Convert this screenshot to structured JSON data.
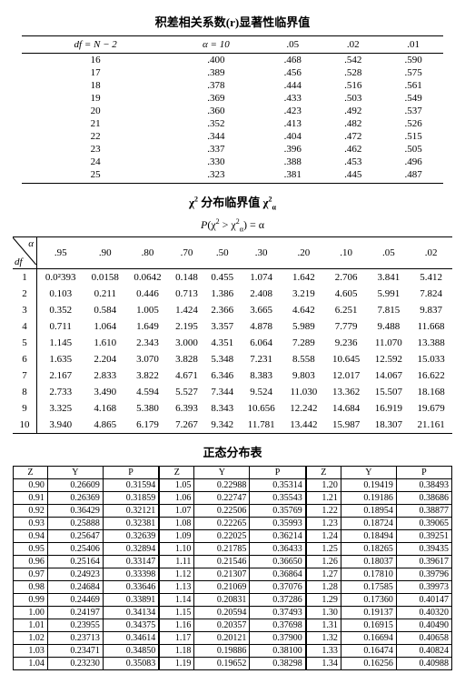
{
  "t1": {
    "title": "积差相关系数(r)显著性临界值",
    "header": [
      "df = N − 2",
      "α = 10",
      ".05",
      ".02",
      ".01"
    ],
    "rows": [
      [
        "16",
        ".400",
        ".468",
        ".542",
        ".590"
      ],
      [
        "17",
        ".389",
        ".456",
        ".528",
        ".575"
      ],
      [
        "18",
        ".378",
        ".444",
        ".516",
        ".561"
      ],
      [
        "19",
        ".369",
        ".433",
        ".503",
        ".549"
      ],
      [
        "20",
        ".360",
        ".423",
        ".492",
        ".537"
      ],
      [
        "21",
        ".352",
        ".413",
        ".482",
        ".526"
      ],
      [
        "22",
        ".344",
        ".404",
        ".472",
        ".515"
      ],
      [
        "23",
        ".337",
        ".396",
        ".462",
        ".505"
      ],
      [
        "24",
        ".330",
        ".388",
        ".453",
        ".496"
      ],
      [
        "25",
        ".323",
        ".381",
        ".445",
        ".487"
      ]
    ]
  },
  "t2": {
    "title": "χ² 分布临界值 χ²α",
    "subtitle": "P(χ² > χ²α) = α",
    "corner_alpha": "α",
    "corner_df": "df",
    "alphas": [
      ".95",
      ".90",
      ".80",
      ".70",
      ".50",
      ".30",
      ".20",
      ".10",
      ".05",
      ".02"
    ],
    "rows": [
      [
        "1",
        "0.0²393",
        "0.0158",
        "0.0642",
        "0.148",
        "0.455",
        "1.074",
        "1.642",
        "2.706",
        "3.841",
        "5.412"
      ],
      [
        "2",
        "0.103",
        "0.211",
        "0.446",
        "0.713",
        "1.386",
        "2.408",
        "3.219",
        "4.605",
        "5.991",
        "7.824"
      ],
      [
        "3",
        "0.352",
        "0.584",
        "1.005",
        "1.424",
        "2.366",
        "3.665",
        "4.642",
        "6.251",
        "7.815",
        "9.837"
      ],
      [
        "4",
        "0.711",
        "1.064",
        "1.649",
        "2.195",
        "3.357",
        "4.878",
        "5.989",
        "7.779",
        "9.488",
        "11.668"
      ],
      [
        "5",
        "1.145",
        "1.610",
        "2.343",
        "3.000",
        "4.351",
        "6.064",
        "7.289",
        "9.236",
        "11.070",
        "13.388"
      ],
      [
        "6",
        "1.635",
        "2.204",
        "3.070",
        "3.828",
        "5.348",
        "7.231",
        "8.558",
        "10.645",
        "12.592",
        "15.033"
      ],
      [
        "7",
        "2.167",
        "2.833",
        "3.822",
        "4.671",
        "6.346",
        "8.383",
        "9.803",
        "12.017",
        "14.067",
        "16.622"
      ],
      [
        "8",
        "2.733",
        "3.490",
        "4.594",
        "5.527",
        "7.344",
        "9.524",
        "11.030",
        "13.362",
        "15.507",
        "18.168"
      ],
      [
        "9",
        "3.325",
        "4.168",
        "5.380",
        "6.393",
        "8.343",
        "10.656",
        "12.242",
        "14.684",
        "16.919",
        "19.679"
      ],
      [
        "10",
        "3.940",
        "4.865",
        "6.179",
        "7.267",
        "9.342",
        "11.781",
        "13.442",
        "15.987",
        "18.307",
        "21.161"
      ]
    ]
  },
  "t3": {
    "title": "正态分布表",
    "header": [
      "Z",
      "Y",
      "P",
      "Z",
      "Y",
      "P",
      "Z",
      "Y",
      "P"
    ],
    "rows": [
      [
        "0.90",
        "0.26609",
        "0.31594",
        "1.05",
        "0.22988",
        "0.35314",
        "1.20",
        "0.19419",
        "0.38493"
      ],
      [
        "0.91",
        "0.26369",
        "0.31859",
        "1.06",
        "0.22747",
        "0.35543",
        "1.21",
        "0.19186",
        "0.38686"
      ],
      [
        "0.92",
        "0.36429",
        "0.32121",
        "1.07",
        "0.22506",
        "0.35769",
        "1.22",
        "0.18954",
        "0.38877"
      ],
      [
        "0.93",
        "0.25888",
        "0.32381",
        "1.08",
        "0.22265",
        "0.35993",
        "1.23",
        "0.18724",
        "0.39065"
      ],
      [
        "0.94",
        "0.25647",
        "0.32639",
        "1.09",
        "0.22025",
        "0.36214",
        "1.24",
        "0.18494",
        "0.39251"
      ],
      [
        "0.95",
        "0.25406",
        "0.32894",
        "1.10",
        "0.21785",
        "0.36433",
        "1.25",
        "0.18265",
        "0.39435"
      ],
      [
        "0.96",
        "0.25164",
        "0.33147",
        "1.11",
        "0.21546",
        "0.36650",
        "1.26",
        "0.18037",
        "0.39617"
      ],
      [
        "0.97",
        "0.24923",
        "0.33398",
        "1.12",
        "0.21307",
        "0.36864",
        "1.27",
        "0.17810",
        "0.39796"
      ],
      [
        "0.98",
        "0.24684",
        "0.33646",
        "1.13",
        "0.21069",
        "0.37076",
        "1.28",
        "0.17585",
        "0.39973"
      ],
      [
        "0.99",
        "0.24469",
        "0.33891",
        "1.14",
        "0.20831",
        "0.37286",
        "1.29",
        "0.17360",
        "0.40147"
      ],
      [
        "1.00",
        "0.24197",
        "0.34134",
        "1.15",
        "0.20594",
        "0.37493",
        "1.30",
        "0.19137",
        "0.40320"
      ],
      [
        "1.01",
        "0.23955",
        "0.34375",
        "1.16",
        "0.20357",
        "0.37698",
        "1.31",
        "0.16915",
        "0.40490"
      ],
      [
        "1.02",
        "0.23713",
        "0.34614",
        "1.17",
        "0.20121",
        "0.37900",
        "1.32",
        "0.16694",
        "0.40658"
      ],
      [
        "1.03",
        "0.23471",
        "0.34850",
        "1.18",
        "0.19886",
        "0.38100",
        "1.33",
        "0.16474",
        "0.40824"
      ],
      [
        "1.04",
        "0.23230",
        "0.35083",
        "1.19",
        "0.19652",
        "0.38298",
        "1.34",
        "0.16256",
        "0.40988"
      ]
    ]
  }
}
